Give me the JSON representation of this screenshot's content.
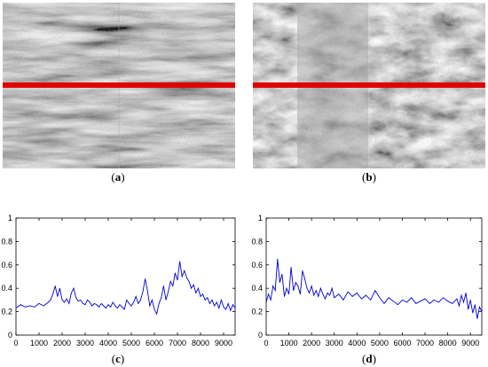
{
  "panels": [
    {
      "id": "a",
      "caption": "a"
    },
    {
      "id": "b",
      "caption": "b"
    },
    {
      "id": "c",
      "caption": "c"
    },
    {
      "id": "d",
      "caption": "d"
    }
  ],
  "colors": {
    "scan_line": "#e00000",
    "signal": "#0000d0"
  },
  "chart_data": [
    {
      "type": "line",
      "panel": "c",
      "xlim": [
        0,
        9500
      ],
      "ylim": [
        0,
        1
      ],
      "xticks": [
        0,
        1000,
        2000,
        3000,
        4000,
        5000,
        6000,
        7000,
        8000,
        9000
      ],
      "yticks": [
        0,
        0.2,
        0.4,
        0.6,
        0.8,
        1
      ],
      "series": [
        {
          "x": [
            0,
            200,
            400,
            600,
            800,
            1000,
            1200,
            1400,
            1500,
            1600,
            1700,
            1800,
            1900,
            2000,
            2100,
            2200,
            2300,
            2400,
            2500,
            2600,
            2700,
            2800,
            2900,
            3000,
            3100,
            3200,
            3300,
            3400,
            3500,
            3600,
            3700,
            3800,
            3900,
            4000,
            4100,
            4200,
            4300,
            4400,
            4500,
            4600,
            4700,
            4800,
            4900,
            5000,
            5100,
            5200,
            5300,
            5400,
            5500,
            5600,
            5700,
            5800,
            5900,
            6000,
            6100,
            6200,
            6300,
            6400,
            6500,
            6600,
            6700,
            6800,
            6900,
            7000,
            7100,
            7200,
            7300,
            7400,
            7500,
            7600,
            7700,
            7800,
            7900,
            8000,
            8100,
            8200,
            8300,
            8400,
            8500,
            8600,
            8700,
            8800,
            8900,
            9000,
            9100,
            9200,
            9300,
            9400,
            9500
          ],
          "y": [
            0.23,
            0.26,
            0.24,
            0.25,
            0.24,
            0.27,
            0.25,
            0.28,
            0.3,
            0.35,
            0.42,
            0.33,
            0.4,
            0.3,
            0.28,
            0.31,
            0.27,
            0.36,
            0.4,
            0.32,
            0.29,
            0.3,
            0.27,
            0.26,
            0.3,
            0.28,
            0.25,
            0.27,
            0.26,
            0.24,
            0.27,
            0.25,
            0.23,
            0.26,
            0.24,
            0.28,
            0.25,
            0.23,
            0.26,
            0.24,
            0.22,
            0.3,
            0.27,
            0.25,
            0.28,
            0.33,
            0.27,
            0.3,
            0.37,
            0.48,
            0.38,
            0.25,
            0.3,
            0.22,
            0.18,
            0.27,
            0.32,
            0.42,
            0.3,
            0.37,
            0.46,
            0.42,
            0.53,
            0.47,
            0.63,
            0.5,
            0.55,
            0.49,
            0.46,
            0.4,
            0.43,
            0.36,
            0.4,
            0.33,
            0.35,
            0.3,
            0.32,
            0.27,
            0.3,
            0.25,
            0.28,
            0.23,
            0.3,
            0.24,
            0.22,
            0.27,
            0.21,
            0.26,
            0.23
          ]
        }
      ]
    },
    {
      "type": "line",
      "panel": "d",
      "xlim": [
        0,
        9500
      ],
      "ylim": [
        0,
        1
      ],
      "xticks": [
        0,
        1000,
        2000,
        3000,
        4000,
        5000,
        6000,
        7000,
        8000,
        9000
      ],
      "yticks": [
        0,
        0.2,
        0.4,
        0.6,
        0.8,
        1
      ],
      "series": [
        {
          "x": [
            0,
            100,
            200,
            300,
            400,
            500,
            600,
            700,
            800,
            900,
            1000,
            1100,
            1200,
            1300,
            1400,
            1500,
            1600,
            1700,
            1800,
            1900,
            2000,
            2100,
            2200,
            2300,
            2400,
            2500,
            2600,
            2700,
            2800,
            2900,
            3000,
            3200,
            3400,
            3600,
            3800,
            4000,
            4200,
            4400,
            4600,
            4800,
            5000,
            5200,
            5400,
            5600,
            5800,
            6000,
            6200,
            6400,
            6600,
            6800,
            7000,
            7200,
            7400,
            7600,
            7800,
            8000,
            8200,
            8400,
            8500,
            8600,
            8700,
            8800,
            8900,
            9000,
            9100,
            9200,
            9300,
            9400,
            9500
          ],
          "y": [
            0.28,
            0.35,
            0.3,
            0.42,
            0.38,
            0.65,
            0.45,
            0.52,
            0.33,
            0.4,
            0.35,
            0.58,
            0.38,
            0.45,
            0.42,
            0.35,
            0.55,
            0.48,
            0.4,
            0.36,
            0.42,
            0.34,
            0.38,
            0.33,
            0.4,
            0.35,
            0.31,
            0.36,
            0.34,
            0.4,
            0.32,
            0.35,
            0.3,
            0.37,
            0.33,
            0.36,
            0.31,
            0.34,
            0.3,
            0.38,
            0.32,
            0.27,
            0.32,
            0.29,
            0.26,
            0.3,
            0.28,
            0.32,
            0.27,
            0.29,
            0.31,
            0.27,
            0.3,
            0.28,
            0.32,
            0.29,
            0.27,
            0.31,
            0.25,
            0.34,
            0.28,
            0.36,
            0.22,
            0.3,
            0.19,
            0.26,
            0.14,
            0.24,
            0.2
          ]
        }
      ]
    }
  ]
}
